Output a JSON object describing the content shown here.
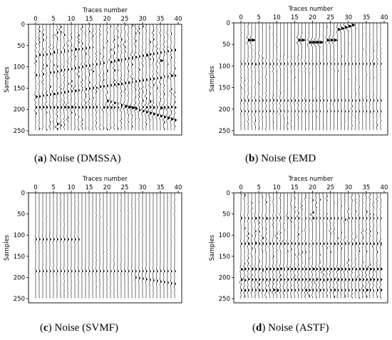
{
  "chart_data": [
    {
      "type": "wiggle",
      "label": "a",
      "caption": "Noise (DMSSA)",
      "xlabel": "Traces number",
      "ylabel": "Samples",
      "xticks": [
        0,
        5,
        10,
        15,
        20,
        25,
        30,
        35,
        40
      ],
      "yticks": [
        0,
        50,
        100,
        150,
        200,
        250
      ],
      "xlim": [
        -2,
        41
      ],
      "ylim": [
        0,
        260
      ],
      "traces": 40,
      "samples": 250,
      "noise_level": 0.75,
      "events": [
        {
          "trace_from": 0,
          "trace_to": 39,
          "sample_at_first": 195,
          "sample_at_last": 195,
          "amplitude": 1.0
        },
        {
          "trace_from": 20,
          "trace_to": 39,
          "sample_at_first": 180,
          "sample_at_last": 225,
          "amplitude": 1.4
        },
        {
          "trace_from": 0,
          "trace_to": 39,
          "sample_at_first": 170,
          "sample_at_last": 120,
          "amplitude": 0.9
        },
        {
          "trace_from": 0,
          "trace_to": 39,
          "sample_at_first": 120,
          "sample_at_last": 60,
          "amplitude": 0.8
        },
        {
          "trace_from": 0,
          "trace_to": 15,
          "sample_at_first": 75,
          "sample_at_last": 55,
          "amplitude": 0.7
        }
      ]
    },
    {
      "type": "wiggle",
      "label": "b",
      "caption": "Noise (EMD",
      "xlabel": "Traces number",
      "ylabel": "Samples",
      "xticks": [
        0,
        5,
        10,
        15,
        20,
        25,
        30,
        35,
        40
      ],
      "yticks": [
        0,
        50,
        100,
        150,
        200,
        250
      ],
      "xlim": [
        -2,
        41
      ],
      "ylim": [
        0,
        260
      ],
      "traces": 40,
      "samples": 250,
      "noise_level": 0.35,
      "events": [
        {
          "trace_from": 2,
          "trace_to": 3,
          "sample_at_first": 40,
          "sample_at_last": 40,
          "amplitude": 2.2
        },
        {
          "trace_from": 16,
          "trace_to": 17,
          "sample_at_first": 40,
          "sample_at_last": 40,
          "amplitude": 2.2
        },
        {
          "trace_from": 19,
          "trace_to": 22,
          "sample_at_first": 45,
          "sample_at_last": 45,
          "amplitude": 2.4
        },
        {
          "trace_from": 24,
          "trace_to": 26,
          "sample_at_first": 40,
          "sample_at_last": 40,
          "amplitude": 2.0
        },
        {
          "trace_from": 27,
          "trace_to": 31,
          "sample_at_first": 15,
          "sample_at_last": 5,
          "amplitude": 1.8
        },
        {
          "trace_from": 0,
          "trace_to": 39,
          "sample_at_first": 95,
          "sample_at_last": 95,
          "amplitude": 0.6
        },
        {
          "trace_from": 0,
          "trace_to": 39,
          "sample_at_first": 180,
          "sample_at_last": 180,
          "amplitude": 0.6
        },
        {
          "trace_from": 0,
          "trace_to": 39,
          "sample_at_first": 205,
          "sample_at_last": 205,
          "amplitude": 0.5
        }
      ]
    },
    {
      "type": "wiggle",
      "label": "c",
      "caption": "Noise (SVMF)",
      "xlabel": "Traces number",
      "ylabel": "Samples",
      "xticks": [
        0,
        5,
        10,
        15,
        20,
        25,
        30,
        35,
        40
      ],
      "yticks": [
        0,
        50,
        100,
        150,
        200,
        250
      ],
      "xlim": [
        -2,
        41
      ],
      "ylim": [
        0,
        260
      ],
      "traces": 40,
      "samples": 250,
      "noise_level": 0.15,
      "events": [
        {
          "trace_from": 0,
          "trace_to": 12,
          "sample_at_first": 110,
          "sample_at_last": 110,
          "amplitude": 0.7
        },
        {
          "trace_from": 0,
          "trace_to": 39,
          "sample_at_first": 185,
          "sample_at_last": 185,
          "amplitude": 0.6
        },
        {
          "trace_from": 28,
          "trace_to": 39,
          "sample_at_first": 200,
          "sample_at_last": 215,
          "amplitude": 0.7
        }
      ]
    },
    {
      "type": "wiggle",
      "label": "d",
      "caption": "Noise (ASTF)",
      "xlabel": "Traces number",
      "ylabel": "Samples",
      "xticks": [
        0,
        5,
        10,
        15,
        20,
        25,
        30,
        35,
        40
      ],
      "yticks": [
        0,
        50,
        100,
        150,
        200,
        250
      ],
      "xlim": [
        -2,
        41
      ],
      "ylim": [
        0,
        260
      ],
      "traces": 40,
      "samples": 250,
      "noise_level": 0.65,
      "events": [
        {
          "trace_from": 0,
          "trace_to": 39,
          "sample_at_first": 180,
          "sample_at_last": 180,
          "amplitude": 1.1
        },
        {
          "trace_from": 0,
          "trace_to": 39,
          "sample_at_first": 205,
          "sample_at_last": 205,
          "amplitude": 1.0
        },
        {
          "trace_from": 0,
          "trace_to": 39,
          "sample_at_first": 120,
          "sample_at_last": 120,
          "amplitude": 0.8
        },
        {
          "trace_from": 0,
          "trace_to": 39,
          "sample_at_first": 60,
          "sample_at_last": 60,
          "amplitude": 0.6
        },
        {
          "trace_from": 0,
          "trace_to": 39,
          "sample_at_first": 230,
          "sample_at_last": 230,
          "amplitude": 0.8
        }
      ]
    }
  ]
}
